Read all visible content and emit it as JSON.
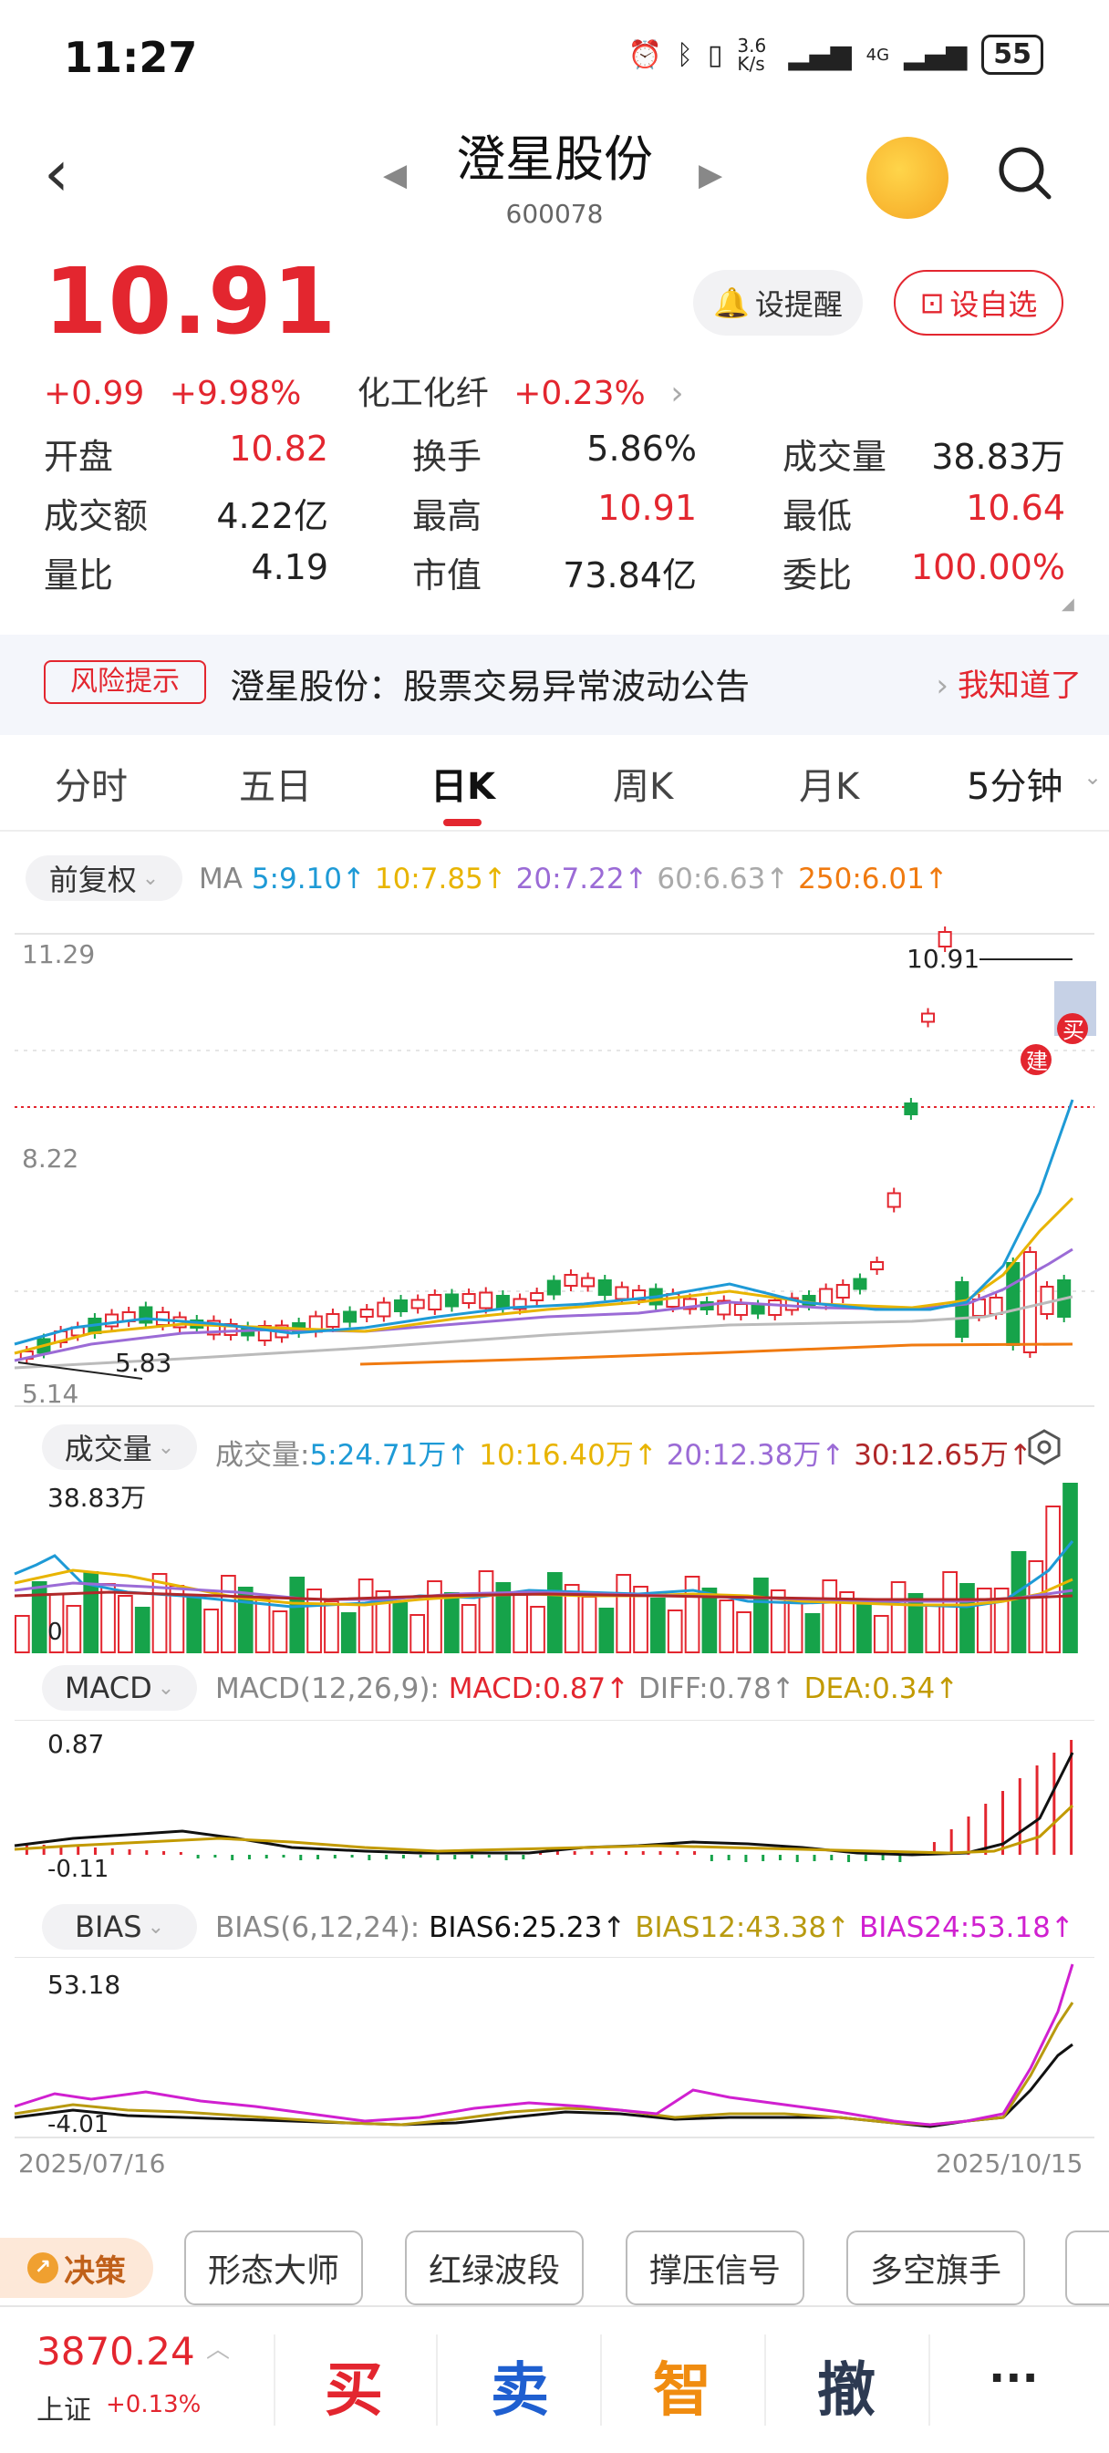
{
  "status_bar": {
    "time": "11:27",
    "net_speed": "3.6 K/s",
    "network": "4G",
    "battery": "55"
  },
  "header": {
    "title": "澄星股份",
    "code": "600078"
  },
  "quote": {
    "price": "10.91",
    "change": "+0.99",
    "change_pct": "+9.98%",
    "sector": "化工化纤",
    "sector_change": "+0.23%",
    "remind_label": "设提醒",
    "add_fav_label": "设自选"
  },
  "stats": [
    {
      "label": "开盘",
      "value": "10.82",
      "color": "#e3262f"
    },
    {
      "label": "换手",
      "value": "5.86%",
      "color": "#222222"
    },
    {
      "label": "成交量",
      "value": "38.83万",
      "color": "#222222"
    },
    {
      "label": "成交额",
      "value": "4.22亿",
      "color": "#222222"
    },
    {
      "label": "最高",
      "value": "10.91",
      "color": "#e3262f"
    },
    {
      "label": "最低",
      "value": "10.64",
      "color": "#e3262f"
    },
    {
      "label": "量比",
      "value": "4.19",
      "color": "#222222"
    },
    {
      "label": "市值",
      "value": "73.84亿",
      "color": "#222222"
    },
    {
      "label": "委比",
      "value": "100.00%",
      "color": "#e3262f"
    }
  ],
  "risk": {
    "tag": "风险提示",
    "text": "澄星股份：股票交易异常波动公告",
    "ack": "我知道了"
  },
  "tabs": [
    "分时",
    "五日",
    "日K",
    "周K",
    "月K",
    "5分钟"
  ],
  "active_tab": "日K",
  "kline": {
    "adjust": "前复权",
    "ma_label": "MA",
    "ma5": "5:9.10",
    "ma10": "10:7.85",
    "ma20": "20:7.22",
    "ma60": "60:6.63",
    "ma250": "250:6.01",
    "y_max": "11.29",
    "y_mid": "8.22",
    "y_min": "5.14",
    "low_mark": "5.83",
    "high_mark": "10.91",
    "buy_tag": "买",
    "build_tag": "建"
  },
  "volume": {
    "label": "成交量",
    "prefix": "成交量:",
    "ma5": "5:24.71万",
    "ma10": "10:16.40万",
    "ma20": "20:12.38万",
    "ma30": "30:12.65万",
    "y_max": "38.83万",
    "y_min": "0"
  },
  "macd": {
    "label": "MACD",
    "params": "MACD(12,26,9):",
    "macd": "MACD:0.87",
    "diff": "DIFF:0.78",
    "dea": "DEA:0.34",
    "y_max": "0.87",
    "y_min": "-0.11"
  },
  "bias": {
    "label": "BIAS",
    "params": "BIAS(6,12,24):",
    "b6": "BIAS6:25.23",
    "b12": "BIAS12:43.38",
    "b24": "BIAS24:53.18",
    "y_max": "53.18",
    "y_min": "-4.01"
  },
  "dates": {
    "start": "2025/07/16",
    "end": "2025/10/15"
  },
  "tools": {
    "decide": "决策",
    "items": [
      "形态大师",
      "红绿波段",
      "撑压信号",
      "多空旗手"
    ]
  },
  "bottom": {
    "index_value": "3870.24",
    "index_name": "上证",
    "index_pct": "+0.13%",
    "buy": "买",
    "sell": "卖",
    "smart": "智",
    "cancel": "撤",
    "more": "···"
  },
  "colors": {
    "up": "#e3262f",
    "down": "#16a34a",
    "ma5": "#1e9ad6",
    "ma10": "#e8b400",
    "ma20": "#9b6bd6",
    "ma60": "#aaaaaa",
    "ma250": "#f07a10"
  }
}
